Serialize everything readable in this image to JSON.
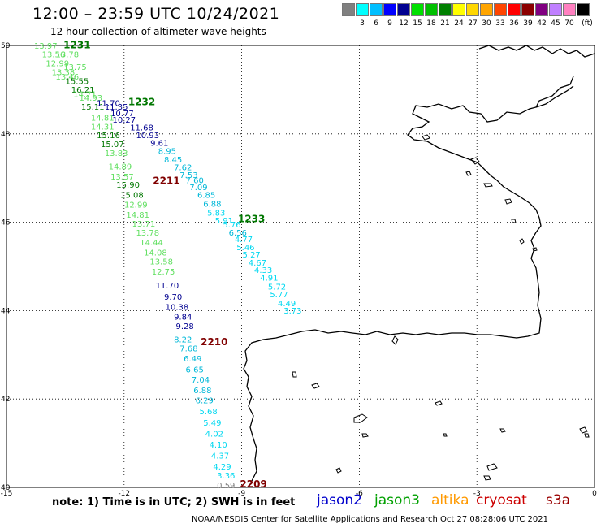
{
  "header": {
    "title": "12:00 – 23:59 UTC 10/24/2021",
    "subtitle": "12 hour collection of altimeter wave heights"
  },
  "scale": {
    "unit": "(ft)",
    "bins": [
      {
        "label": "",
        "color": "#808080"
      },
      {
        "label": "3",
        "color": "#00ffff"
      },
      {
        "label": "6",
        "color": "#00bfff"
      },
      {
        "label": "9",
        "color": "#0000ff"
      },
      {
        "label": "12",
        "color": "#000090"
      },
      {
        "label": "15",
        "color": "#00e000"
      },
      {
        "label": "18",
        "color": "#00c000"
      },
      {
        "label": "21",
        "color": "#008000"
      },
      {
        "label": "24",
        "color": "#ffff00"
      },
      {
        "label": "27",
        "color": "#ffd700"
      },
      {
        "label": "30",
        "color": "#ffa500"
      },
      {
        "label": "33",
        "color": "#ff4500"
      },
      {
        "label": "36",
        "color": "#ff0000"
      },
      {
        "label": "39",
        "color": "#8b0000"
      },
      {
        "label": "42",
        "color": "#800080"
      },
      {
        "label": "45",
        "color": "#c080ff"
      },
      {
        "label": "70",
        "color": "#ff80c0"
      },
      {
        "label": "",
        "color": "#000000"
      }
    ]
  },
  "axes": {
    "lon_ticks": [
      "-15",
      "-12",
      "-9",
      "-6",
      "-3",
      "0"
    ],
    "lat_ticks": [
      "50",
      "48",
      "46",
      "44",
      "42",
      "40"
    ]
  },
  "colors": {
    "lt_green": "#5fdf5f",
    "green": "#007700",
    "navy": "#000090",
    "cyan": "#00b8d8",
    "lt_cyan": "#00d8f0",
    "dark_red": "#800000",
    "gray": "#808080"
  },
  "pass_labels": [
    {
      "text": "1231",
      "lon": -13.2,
      "lat": 49.94,
      "color": "green"
    },
    {
      "text": "1232",
      "lon": -11.55,
      "lat": 48.65,
      "color": "green"
    },
    {
      "text": "2211",
      "lon": -10.92,
      "lat": 46.87,
      "color": "dark_red"
    },
    {
      "text": "1233",
      "lon": -8.75,
      "lat": 46.0,
      "color": "green"
    },
    {
      "text": "2210",
      "lon": -9.7,
      "lat": 43.22,
      "color": "dark_red"
    },
    {
      "text": "2209",
      "lon": -8.7,
      "lat": 40.0,
      "color": "dark_red"
    }
  ],
  "tracks": [
    {
      "name": "track-1231-1232",
      "points": [
        {
          "text": "13.97",
          "lon": -14.0,
          "lat": 49.93,
          "color": "lt_green"
        },
        {
          "text": "13.56",
          "lon": -13.8,
          "lat": 49.73,
          "color": "lt_green"
        },
        {
          "text": "13.78",
          "lon": -13.45,
          "lat": 49.73,
          "color": "lt_green"
        },
        {
          "text": "12.99",
          "lon": -13.7,
          "lat": 49.53,
          "color": "lt_green"
        },
        {
          "text": "13.75",
          "lon": -13.25,
          "lat": 49.45,
          "color": "lt_green"
        },
        {
          "text": "13.38",
          "lon": -13.55,
          "lat": 49.33,
          "color": "lt_green"
        },
        {
          "text": "13.46",
          "lon": -13.45,
          "lat": 49.23,
          "color": "lt_green"
        },
        {
          "text": "15.55",
          "lon": -13.2,
          "lat": 49.13,
          "color": "green"
        },
        {
          "text": "16.21",
          "lon": -13.05,
          "lat": 48.93,
          "color": "green"
        },
        {
          "text": "14.71",
          "lon": -13.0,
          "lat": 48.83,
          "color": "lt_green"
        },
        {
          "text": "14.93",
          "lon": -12.85,
          "lat": 48.75,
          "color": "lt_green"
        },
        {
          "text": "11.70",
          "lon": -12.4,
          "lat": 48.63,
          "color": "navy"
        },
        {
          "text": "15.11",
          "lon": -12.8,
          "lat": 48.55,
          "color": "green"
        },
        {
          "text": "11.35",
          "lon": -12.2,
          "lat": 48.55,
          "color": "navy"
        },
        {
          "text": "10.77",
          "lon": -12.05,
          "lat": 48.4,
          "color": "navy"
        },
        {
          "text": "14.81",
          "lon": -12.55,
          "lat": 48.3,
          "color": "lt_green"
        },
        {
          "text": "10.27",
          "lon": -12.0,
          "lat": 48.25,
          "color": "navy"
        },
        {
          "text": "14.31",
          "lon": -12.55,
          "lat": 48.1,
          "color": "lt_green"
        },
        {
          "text": "11.68",
          "lon": -11.55,
          "lat": 48.08,
          "color": "navy"
        },
        {
          "text": "15.16",
          "lon": -12.4,
          "lat": 47.9,
          "color": "green"
        },
        {
          "text": "10.93",
          "lon": -11.4,
          "lat": 47.9,
          "color": "navy"
        },
        {
          "text": "15.07",
          "lon": -12.3,
          "lat": 47.7,
          "color": "green"
        },
        {
          "text": "9.61",
          "lon": -11.1,
          "lat": 47.73,
          "color": "navy"
        },
        {
          "text": "13.83",
          "lon": -12.2,
          "lat": 47.5,
          "color": "lt_green"
        },
        {
          "text": "8.95",
          "lon": -10.9,
          "lat": 47.55,
          "color": "cyan"
        },
        {
          "text": "8.45",
          "lon": -10.75,
          "lat": 47.35,
          "color": "cyan"
        },
        {
          "text": "14.89",
          "lon": -12.1,
          "lat": 47.2,
          "color": "lt_green"
        },
        {
          "text": "7.62",
          "lon": -10.5,
          "lat": 47.18,
          "color": "cyan"
        },
        {
          "text": "7.53",
          "lon": -10.35,
          "lat": 47.0,
          "color": "cyan"
        },
        {
          "text": "13.57",
          "lon": -12.05,
          "lat": 46.97,
          "color": "lt_green"
        },
        {
          "text": "7.60",
          "lon": -10.2,
          "lat": 46.88,
          "color": "cyan"
        },
        {
          "text": "15.90",
          "lon": -11.9,
          "lat": 46.78,
          "color": "green"
        },
        {
          "text": "7.09",
          "lon": -10.1,
          "lat": 46.73,
          "color": "cyan"
        },
        {
          "text": "15.08",
          "lon": -11.8,
          "lat": 46.55,
          "color": "green"
        },
        {
          "text": "6.85",
          "lon": -9.9,
          "lat": 46.55,
          "color": "cyan"
        },
        {
          "text": "12.99",
          "lon": -11.7,
          "lat": 46.33,
          "color": "lt_green"
        },
        {
          "text": "6.88",
          "lon": -9.75,
          "lat": 46.35,
          "color": "cyan"
        },
        {
          "text": "5.83",
          "lon": -9.65,
          "lat": 46.15,
          "color": "lt_cyan"
        },
        {
          "text": "14.81",
          "lon": -11.65,
          "lat": 46.1,
          "color": "lt_green"
        },
        {
          "text": "5.91",
          "lon": -9.45,
          "lat": 45.97,
          "color": "lt_cyan"
        },
        {
          "text": "13.71",
          "lon": -11.5,
          "lat": 45.9,
          "color": "lt_green"
        },
        {
          "text": "5.76",
          "lon": -9.25,
          "lat": 45.88,
          "color": "lt_cyan"
        },
        {
          "text": "13.78",
          "lon": -11.4,
          "lat": 45.7,
          "color": "lt_green"
        },
        {
          "text": "6.56",
          "lon": -9.1,
          "lat": 45.7,
          "color": "cyan"
        },
        {
          "text": "4.77",
          "lon": -8.95,
          "lat": 45.55,
          "color": "lt_cyan"
        },
        {
          "text": "14.44",
          "lon": -11.3,
          "lat": 45.48,
          "color": "lt_green"
        },
        {
          "text": "5.46",
          "lon": -8.9,
          "lat": 45.37,
          "color": "lt_cyan"
        },
        {
          "text": "5.27",
          "lon": -8.75,
          "lat": 45.2,
          "color": "lt_cyan"
        },
        {
          "text": "14.08",
          "lon": -11.2,
          "lat": 45.25,
          "color": "lt_green"
        },
        {
          "text": "4.67",
          "lon": -8.6,
          "lat": 45.02,
          "color": "lt_cyan"
        },
        {
          "text": "13.58",
          "lon": -11.05,
          "lat": 45.05,
          "color": "lt_green"
        },
        {
          "text": "4.33",
          "lon": -8.45,
          "lat": 44.85,
          "color": "lt_cyan"
        },
        {
          "text": "12.75",
          "lon": -11.0,
          "lat": 44.82,
          "color": "lt_green"
        },
        {
          "text": "4.91",
          "lon": -8.3,
          "lat": 44.68,
          "color": "lt_cyan"
        },
        {
          "text": "5.72",
          "lon": -8.1,
          "lat": 44.48,
          "color": "lt_cyan"
        },
        {
          "text": "11.70",
          "lon": -10.9,
          "lat": 44.5,
          "color": "navy"
        },
        {
          "text": "5.77",
          "lon": -8.05,
          "lat": 44.3,
          "color": "lt_cyan"
        },
        {
          "text": "9.70",
          "lon": -10.75,
          "lat": 44.25,
          "color": "navy"
        },
        {
          "text": "4.49",
          "lon": -7.85,
          "lat": 44.1,
          "color": "lt_cyan"
        },
        {
          "text": "10.38",
          "lon": -10.65,
          "lat": 44.02,
          "color": "navy"
        },
        {
          "text": "3.73",
          "lon": -7.7,
          "lat": 43.93,
          "color": "lt_cyan"
        },
        {
          "text": "9.84",
          "lon": -10.5,
          "lat": 43.8,
          "color": "navy"
        },
        {
          "text": "9.28",
          "lon": -10.45,
          "lat": 43.58,
          "color": "navy"
        },
        {
          "text": "8.22",
          "lon": -10.5,
          "lat": 43.28,
          "color": "cyan"
        },
        {
          "text": "7.68",
          "lon": -10.35,
          "lat": 43.08,
          "color": "cyan"
        },
        {
          "text": "6.49",
          "lon": -10.25,
          "lat": 42.85,
          "color": "cyan"
        },
        {
          "text": "6.65",
          "lon": -10.2,
          "lat": 42.6,
          "color": "cyan"
        },
        {
          "text": "7.04",
          "lon": -10.05,
          "lat": 42.37,
          "color": "cyan"
        },
        {
          "text": "6.88",
          "lon": -10.0,
          "lat": 42.13,
          "color": "cyan"
        },
        {
          "text": "6.29",
          "lon": -9.95,
          "lat": 41.9,
          "color": "cyan"
        },
        {
          "text": "5.68",
          "lon": -9.85,
          "lat": 41.65,
          "color": "lt_cyan"
        },
        {
          "text": "5.49",
          "lon": -9.75,
          "lat": 41.4,
          "color": "lt_cyan"
        },
        {
          "text": "4.02",
          "lon": -9.7,
          "lat": 41.15,
          "color": "lt_cyan"
        },
        {
          "text": "4.10",
          "lon": -9.6,
          "lat": 40.9,
          "color": "lt_cyan"
        },
        {
          "text": "4.37",
          "lon": -9.55,
          "lat": 40.65,
          "color": "lt_cyan"
        },
        {
          "text": "4.29",
          "lon": -9.5,
          "lat": 40.4,
          "color": "lt_cyan"
        },
        {
          "text": "3.36",
          "lon": -9.4,
          "lat": 40.2,
          "color": "lt_cyan"
        },
        {
          "text": "0.59",
          "lon": -9.4,
          "lat": 39.98,
          "color": "gray"
        }
      ]
    }
  ],
  "note": "note: 1) Time is in UTC; 2) SWH is in feet",
  "legend": [
    {
      "label": "jason2",
      "color": "#0000cc"
    },
    {
      "label": "jason3",
      "color": "#00a000"
    },
    {
      "label": "altika",
      "color": "#ff9900"
    },
    {
      "label": "cryosat",
      "color": "#cc0000"
    },
    {
      "label": "s3a",
      "color": "#990000"
    }
  ],
  "credit": "NOAA/NESDIS Center for Satellite Applications and Research     Oct 27 08:28:06 UTC 2021"
}
